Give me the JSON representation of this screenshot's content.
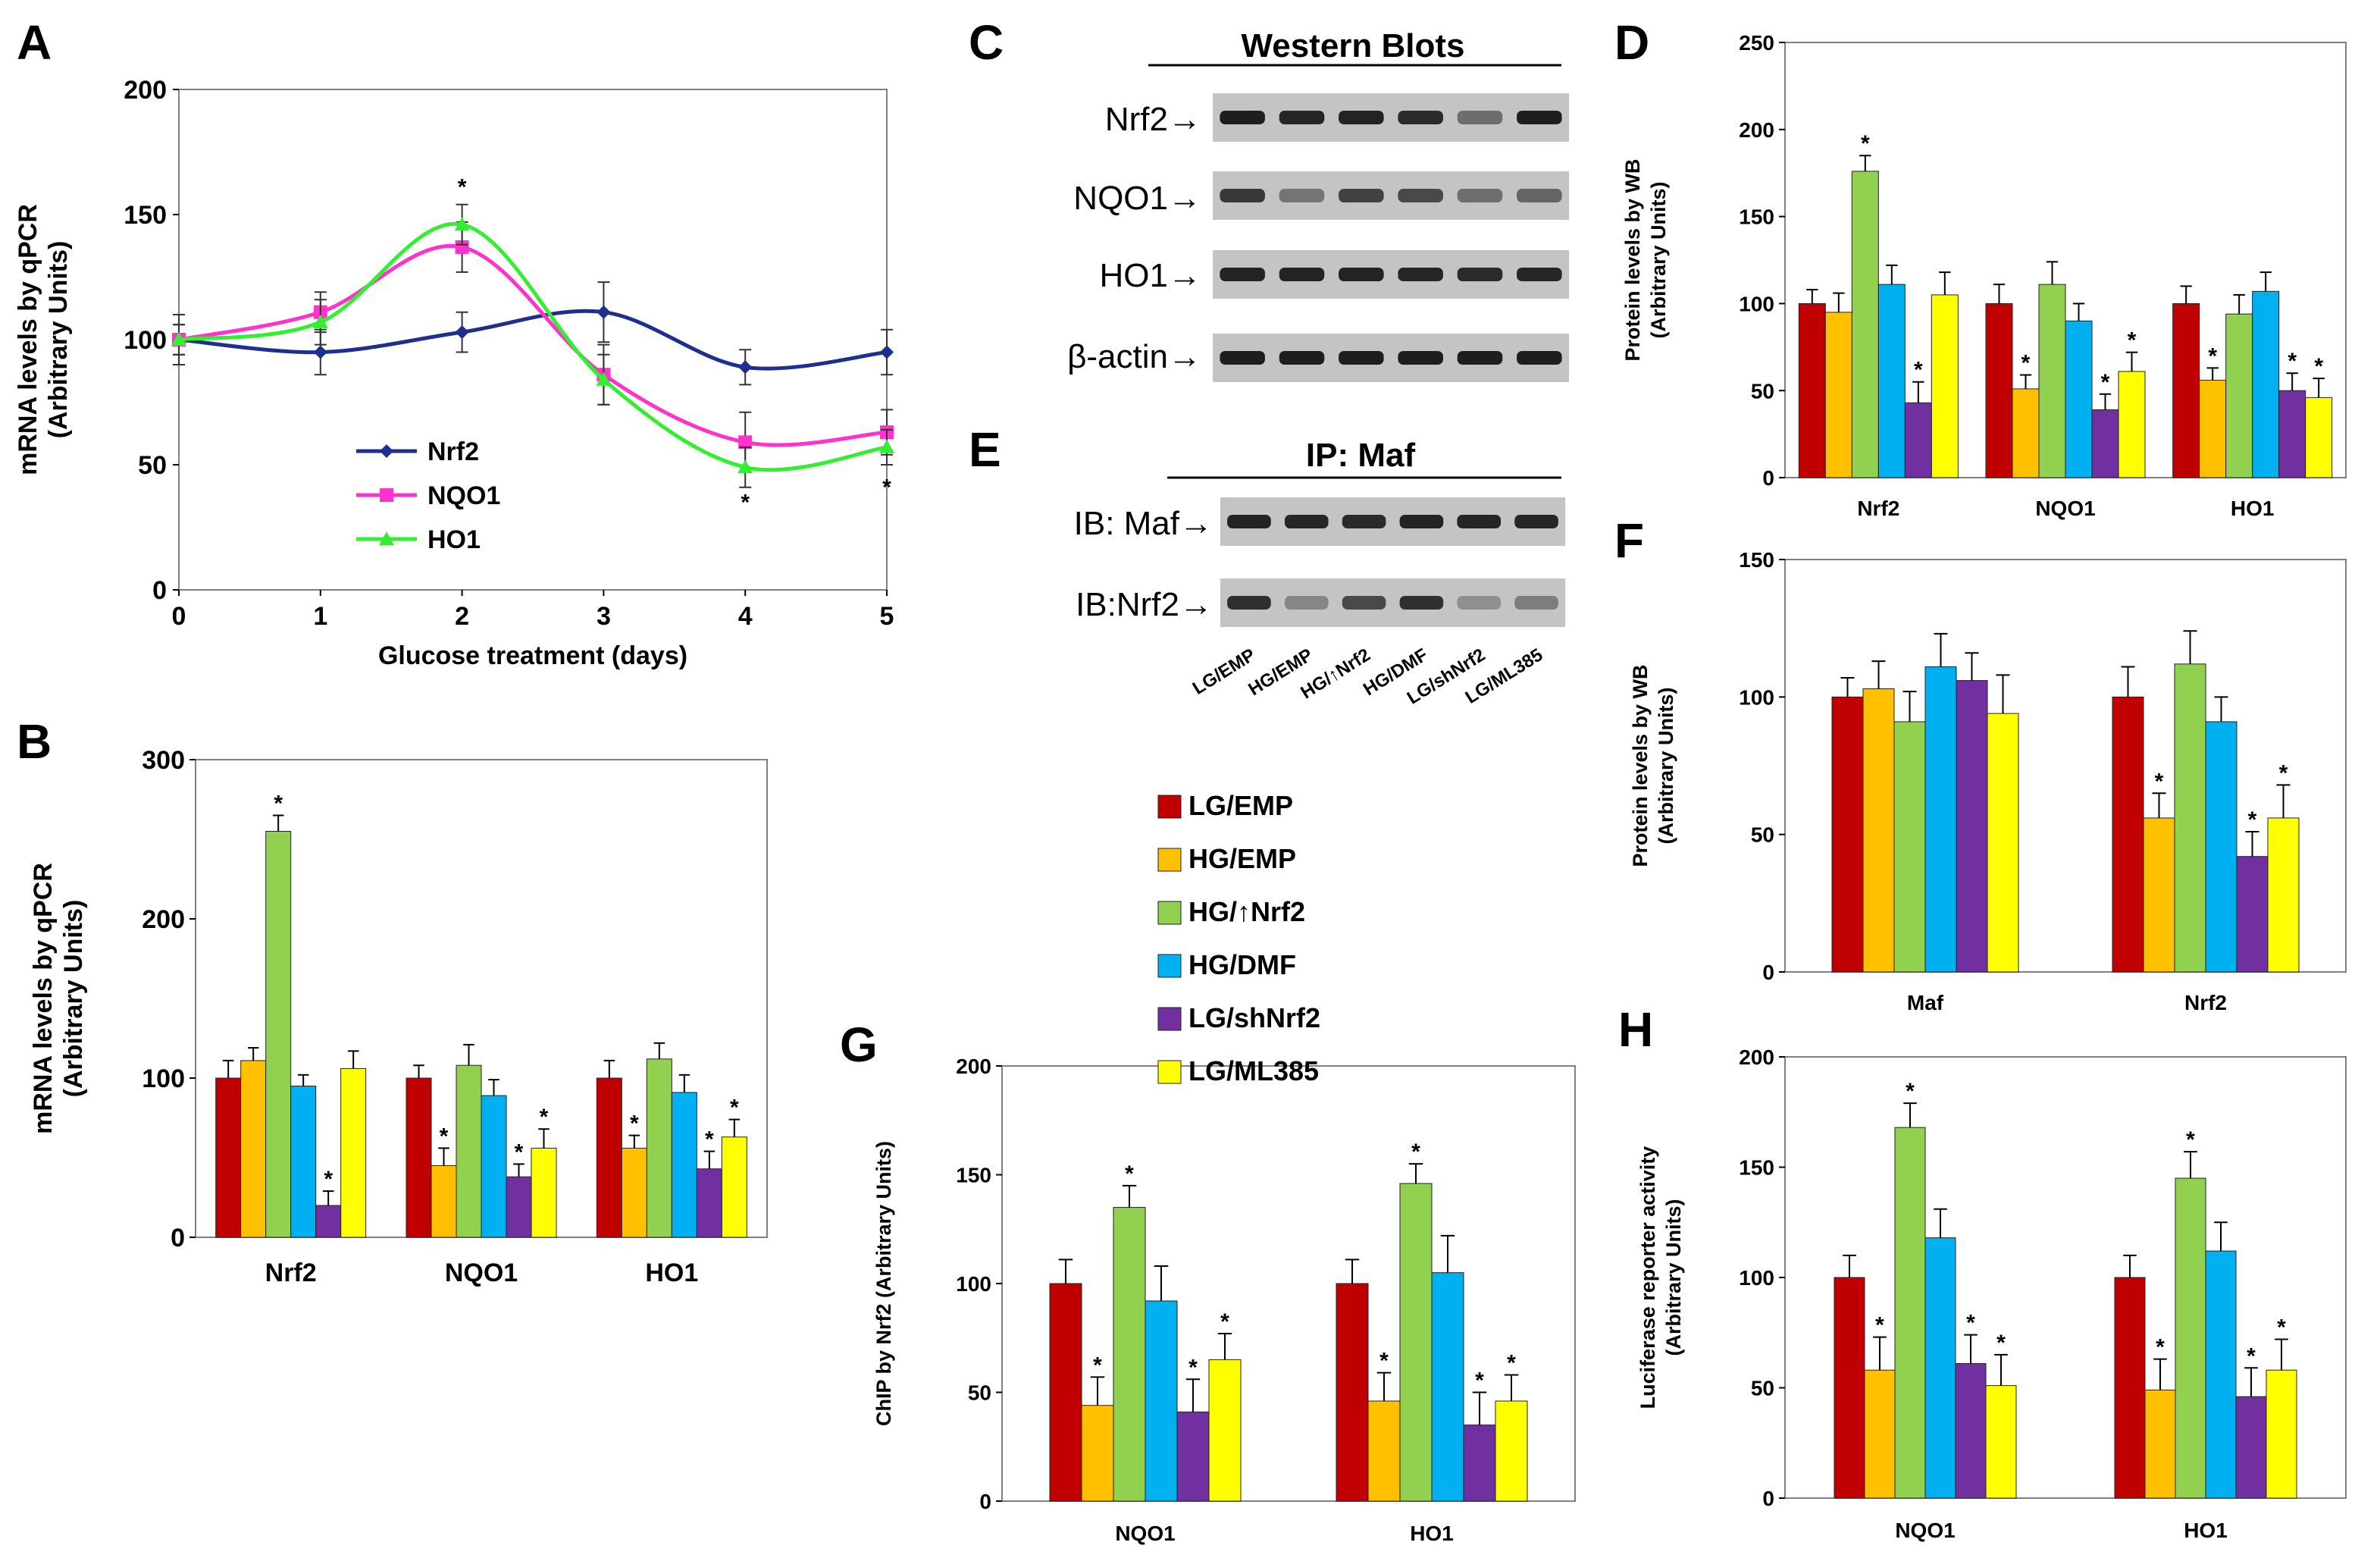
{
  "panel_letters": {
    "A": "A",
    "B": "B",
    "C": "C",
    "D": "D",
    "E": "E",
    "F": "F",
    "G": "G",
    "H": "H"
  },
  "colors": {
    "LG/EMP": "#c00000",
    "HG/EMP": "#ffc000",
    "HG/↑Nrf2": "#92d050",
    "HG/DMF": "#00b0f0",
    "LG/shNrf2": "#7030a0",
    "LG/ML385": "#ffff00",
    "Nrf2_line": "#1f2f8f",
    "NQO1_line": "#ff33cc",
    "HO1_line": "#33ee33"
  },
  "legend": {
    "items": [
      "LG/EMP",
      "HG/EMP",
      "HG/↑Nrf2",
      "HG/DMF",
      "LG/shNrf2",
      "LG/ML385"
    ]
  },
  "blots": {
    "C": {
      "title": "Western Blots",
      "rows": [
        "Nrf2→",
        "NQO1→",
        "HO1→",
        "β-actin→"
      ]
    },
    "E": {
      "title": "IP: Maf",
      "rows": [
        "IB: Maf→",
        "IB:Nrf2→"
      ]
    },
    "lanes": [
      "LG/EMP",
      "HG/EMP",
      "HG/↑Nrf2",
      "HG/DMF",
      "LG/shNrf2",
      "LG/ML385"
    ]
  },
  "chart_data": [
    {
      "id": "A",
      "type": "line",
      "title": "",
      "xlabel": "Glucose treatment (days)",
      "ylabel": "mRNA levels by qPCR\n(Arbitrary Units)",
      "xlim": [
        0,
        5
      ],
      "ylim": [
        0,
        200
      ],
      "x_ticks": [
        "0",
        "1",
        "2",
        "3",
        "4",
        "5"
      ],
      "y_ticks": [
        "0",
        "50",
        "100",
        "150",
        "200"
      ],
      "x": [
        0,
        1,
        2,
        3,
        4,
        5
      ],
      "series": [
        {
          "name": "Nrf2",
          "values": [
            100,
            95,
            103,
            111,
            89,
            95
          ],
          "err": [
            10,
            9,
            8,
            12,
            7,
            9
          ]
        },
        {
          "name": "NQO1",
          "values": [
            100,
            111,
            137,
            86,
            59,
            63
          ],
          "err": [
            6,
            8,
            10,
            12,
            12,
            9
          ]
        },
        {
          "name": "HO1",
          "values": [
            100,
            107,
            146,
            84,
            49,
            57
          ],
          "err": [
            6,
            9,
            8,
            10,
            8,
            7
          ]
        }
      ],
      "stars": [
        {
          "x": 2,
          "y": 158,
          "text": "*"
        },
        {
          "x": 4,
          "y": 32,
          "text": "*"
        },
        {
          "x": 5,
          "y": 38,
          "text": "*"
        }
      ],
      "legend_placement": "bottom-left"
    },
    {
      "id": "B",
      "type": "bar",
      "ylabel": "mRNA levels by qPCR\n(Arbitrary Units)",
      "ylim": [
        0,
        300
      ],
      "y_ticks": [
        "0",
        "100",
        "200",
        "300"
      ],
      "categories": [
        "Nrf2",
        "NQO1",
        "HO1"
      ],
      "series": [
        {
          "name": "LG/EMP",
          "values": [
            100,
            100,
            100
          ],
          "err": [
            11,
            8,
            11
          ]
        },
        {
          "name": "HG/EMP",
          "values": [
            111,
            45,
            56
          ],
          "err": [
            8,
            11,
            8
          ]
        },
        {
          "name": "HG/↑Nrf2",
          "values": [
            255,
            108,
            112
          ],
          "err": [
            10,
            13,
            10
          ]
        },
        {
          "name": "HG/DMF",
          "values": [
            95,
            89,
            91
          ],
          "err": [
            7,
            10,
            11
          ]
        },
        {
          "name": "LG/shNrf2",
          "values": [
            20,
            38,
            43
          ],
          "err": [
            9,
            8,
            11
          ]
        },
        {
          "name": "LG/ML385",
          "values": [
            106,
            56,
            63
          ],
          "err": [
            11,
            12,
            11
          ]
        }
      ],
      "stars": [
        [
          0,
          2
        ],
        [
          0,
          4
        ],
        [
          1,
          1
        ],
        [
          1,
          4
        ],
        [
          1,
          5
        ],
        [
          2,
          1
        ],
        [
          2,
          4
        ],
        [
          2,
          5
        ]
      ]
    },
    {
      "id": "D",
      "type": "bar",
      "ylabel": "Protein levels by WB\n(Arbitrary Units)",
      "ylim": [
        0,
        250
      ],
      "y_ticks": [
        "0",
        "50",
        "100",
        "150",
        "200",
        "250"
      ],
      "categories": [
        "Nrf2",
        "NQO1",
        "HO1"
      ],
      "series": [
        {
          "name": "LG/EMP",
          "values": [
            100,
            100,
            100
          ],
          "err": [
            8,
            11,
            10
          ]
        },
        {
          "name": "HG/EMP",
          "values": [
            95,
            51,
            56
          ],
          "err": [
            11,
            8,
            7
          ]
        },
        {
          "name": "HG/↑Nrf2",
          "values": [
            176,
            111,
            94
          ],
          "err": [
            9,
            13,
            11
          ]
        },
        {
          "name": "HG/DMF",
          "values": [
            111,
            90,
            107
          ],
          "err": [
            11,
            10,
            11
          ]
        },
        {
          "name": "LG/shNrf2",
          "values": [
            43,
            39,
            50
          ],
          "err": [
            12,
            9,
            10
          ]
        },
        {
          "name": "LG/ML385",
          "values": [
            105,
            61,
            46
          ],
          "err": [
            13,
            11,
            11
          ]
        }
      ],
      "stars": [
        [
          0,
          2
        ],
        [
          0,
          4
        ],
        [
          1,
          1
        ],
        [
          1,
          4
        ],
        [
          1,
          5
        ],
        [
          2,
          1
        ],
        [
          2,
          4
        ],
        [
          2,
          5
        ]
      ]
    },
    {
      "id": "F",
      "type": "bar",
      "ylabel": "Protein levels by WB\n(Arbitrary Units)",
      "ylim": [
        0,
        150
      ],
      "y_ticks": [
        "0",
        "50",
        "100",
        "150"
      ],
      "categories": [
        "Maf",
        "Nrf2"
      ],
      "series": [
        {
          "name": "LG/EMP",
          "values": [
            100,
            100
          ],
          "err": [
            7,
            11
          ]
        },
        {
          "name": "HG/EMP",
          "values": [
            103,
            56
          ],
          "err": [
            10,
            9
          ]
        },
        {
          "name": "HG/↑Nrf2",
          "values": [
            91,
            112
          ],
          "err": [
            11,
            12
          ]
        },
        {
          "name": "HG/DMF",
          "values": [
            111,
            91
          ],
          "err": [
            12,
            9
          ]
        },
        {
          "name": "LG/shNrf2",
          "values": [
            106,
            42
          ],
          "err": [
            10,
            9
          ]
        },
        {
          "name": "LG/ML385",
          "values": [
            94,
            56
          ],
          "err": [
            14,
            12
          ]
        }
      ],
      "stars": [
        [
          1,
          1
        ],
        [
          1,
          4
        ],
        [
          1,
          5
        ]
      ]
    },
    {
      "id": "G",
      "type": "bar",
      "ylabel": "ChIP by Nrf2 (Arbitrary Units)",
      "ylim": [
        0,
        200
      ],
      "y_ticks": [
        "0",
        "50",
        "100",
        "150",
        "200"
      ],
      "categories": [
        "NQO1",
        "HO1"
      ],
      "series": [
        {
          "name": "LG/EMP",
          "values": [
            100,
            100
          ],
          "err": [
            11,
            11
          ]
        },
        {
          "name": "HG/EMP",
          "values": [
            44,
            46
          ],
          "err": [
            13,
            13
          ]
        },
        {
          "name": "HG/↑Nrf2",
          "values": [
            135,
            146
          ],
          "err": [
            10,
            9
          ]
        },
        {
          "name": "HG/DMF",
          "values": [
            92,
            105
          ],
          "err": [
            16,
            17
          ]
        },
        {
          "name": "LG/shNrf2",
          "values": [
            41,
            35
          ],
          "err": [
            15,
            15
          ]
        },
        {
          "name": "LG/ML385",
          "values": [
            65,
            46
          ],
          "err": [
            12,
            12
          ]
        }
      ],
      "stars": [
        [
          0,
          1
        ],
        [
          0,
          2
        ],
        [
          0,
          4
        ],
        [
          0,
          5
        ],
        [
          1,
          1
        ],
        [
          1,
          2
        ],
        [
          1,
          4
        ],
        [
          1,
          5
        ]
      ]
    },
    {
      "id": "H",
      "type": "bar",
      "ylabel": "Luciferase reporter activity\n(Arbitrary Units)",
      "ylim": [
        0,
        200
      ],
      "y_ticks": [
        "0",
        "50",
        "100",
        "150",
        "200"
      ],
      "categories": [
        "NQO1",
        "HO1"
      ],
      "series": [
        {
          "name": "LG/EMP",
          "values": [
            100,
            100
          ],
          "err": [
            10,
            10
          ]
        },
        {
          "name": "HG/EMP",
          "values": [
            58,
            49
          ],
          "err": [
            15,
            14
          ]
        },
        {
          "name": "HG/↑Nrf2",
          "values": [
            168,
            145
          ],
          "err": [
            11,
            12
          ]
        },
        {
          "name": "HG/DMF",
          "values": [
            118,
            112
          ],
          "err": [
            13,
            13
          ]
        },
        {
          "name": "LG/shNrf2",
          "values": [
            61,
            46
          ],
          "err": [
            13,
            13
          ]
        },
        {
          "name": "LG/ML385",
          "values": [
            51,
            58
          ],
          "err": [
            14,
            14
          ]
        }
      ],
      "stars": [
        [
          0,
          1
        ],
        [
          0,
          2
        ],
        [
          0,
          4
        ],
        [
          0,
          5
        ],
        [
          1,
          1
        ],
        [
          1,
          2
        ],
        [
          1,
          4
        ],
        [
          1,
          5
        ]
      ]
    }
  ]
}
